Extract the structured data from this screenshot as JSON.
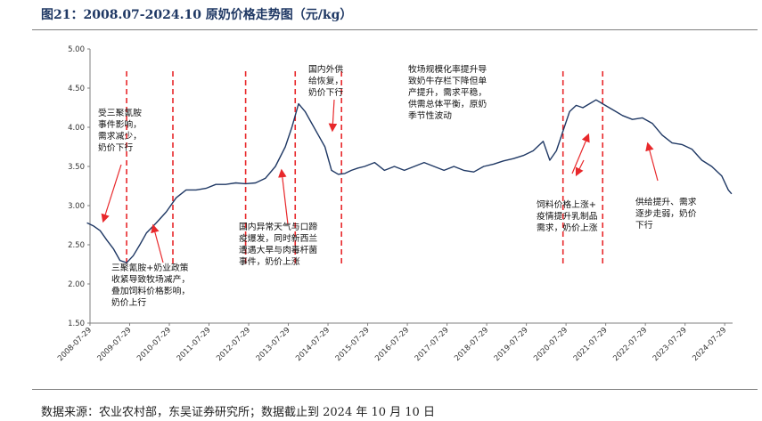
{
  "title": "图21：2008.07-2024.10 原奶价格走势图（元/kg）",
  "source": "数据来源：农业农村部，东吴证券研究所；数据截止到 2024 年 10 月 10 日",
  "colors": {
    "line": "#1f3864",
    "marker": "#e8282b",
    "axis": "#7f7f7f",
    "title": "#1f3864"
  },
  "chart_data": {
    "type": "line",
    "title": "",
    "xlabel": "",
    "ylabel": "",
    "ylim": [
      1.5,
      5.0
    ],
    "yticks": [
      "1.50",
      "2.00",
      "2.50",
      "3.00",
      "3.50",
      "4.00",
      "4.50",
      "5.00"
    ],
    "xticks": [
      "2008-07-29",
      "2009-07-29",
      "2010-07-29",
      "2011-07-29",
      "2012-07-29",
      "2013-07-29",
      "2014-07-29",
      "2015-07-29",
      "2016-07-29",
      "2017-07-29",
      "2018-07-29",
      "2019-07-29",
      "2020-07-29",
      "2021-07-29",
      "2022-07-29",
      "2023-07-29",
      "2024-07-29"
    ],
    "grid": false,
    "legend": "none",
    "series": [
      {
        "x": [
          "2008-07",
          "2008-09",
          "2008-11",
          "2009-01",
          "2009-03",
          "2009-05",
          "2009-07",
          "2009-09",
          "2009-11",
          "2010-01",
          "2010-04",
          "2010-07",
          "2010-10",
          "2011-01",
          "2011-04",
          "2011-07",
          "2011-10",
          "2012-01",
          "2012-04",
          "2012-07",
          "2012-10",
          "2013-01",
          "2013-04",
          "2013-07",
          "2013-09",
          "2013-11",
          "2014-01",
          "2014-03",
          "2014-05",
          "2014-07",
          "2014-09",
          "2014-11",
          "2015-01",
          "2015-03",
          "2015-05",
          "2015-07",
          "2015-10",
          "2016-01",
          "2016-04",
          "2016-07",
          "2016-10",
          "2017-01",
          "2017-04",
          "2017-07",
          "2017-10",
          "2018-01",
          "2018-04",
          "2018-07",
          "2018-10",
          "2019-01",
          "2019-04",
          "2019-07",
          "2019-10",
          "2020-01",
          "2020-03",
          "2020-05",
          "2020-07",
          "2020-09",
          "2020-11",
          "2021-01",
          "2021-03",
          "2021-05",
          "2021-07",
          "2021-09",
          "2021-11",
          "2022-01",
          "2022-04",
          "2022-07",
          "2022-10",
          "2023-01",
          "2023-04",
          "2023-07",
          "2023-10",
          "2024-01",
          "2024-04",
          "2024-07",
          "2024-09",
          "2024-10"
        ],
        "y": [
          2.78,
          2.74,
          2.68,
          2.56,
          2.45,
          2.3,
          2.27,
          2.36,
          2.5,
          2.65,
          2.78,
          2.92,
          3.1,
          3.2,
          3.2,
          3.22,
          3.27,
          3.27,
          3.29,
          3.28,
          3.29,
          3.35,
          3.5,
          3.75,
          4.0,
          4.3,
          4.2,
          4.05,
          3.9,
          3.75,
          3.45,
          3.4,
          3.41,
          3.45,
          3.48,
          3.5,
          3.55,
          3.45,
          3.5,
          3.45,
          3.5,
          3.55,
          3.5,
          3.45,
          3.5,
          3.45,
          3.43,
          3.5,
          3.53,
          3.57,
          3.6,
          3.64,
          3.7,
          3.82,
          3.58,
          3.7,
          3.95,
          4.2,
          4.28,
          4.25,
          4.3,
          4.35,
          4.3,
          4.25,
          4.2,
          4.15,
          4.1,
          4.12,
          4.05,
          3.9,
          3.8,
          3.78,
          3.72,
          3.58,
          3.5,
          3.38,
          3.2,
          3.15
        ]
      }
    ],
    "event_dates": [
      "2009-07",
      "2010-09",
      "2012-07",
      "2013-10",
      "2014-12",
      "2020-07",
      "2021-07"
    ],
    "annotations": [
      {
        "text": [
          "受三聚氰胺",
          "事件影响，",
          "需求减少，",
          "奶价下行"
        ]
      },
      {
        "text": [
          "三聚氰胺+奶业政策",
          "收紧导致牧场减产，",
          "叠加饲料价格影响，",
          "奶价上行"
        ]
      },
      {
        "text": [
          "国内异常天气与口蹄",
          "疫爆发，同时新西兰",
          "遭遇大旱与肉毒杆菌",
          "事件，奶价上涨"
        ]
      },
      {
        "text": [
          "国内外供",
          "给恢复，",
          "奶价下行"
        ]
      },
      {
        "text": [
          "牧场规模化率提升导",
          "致奶牛存栏下降但单",
          "产提升，需求平稳，",
          "供需总体平衡，原奶",
          "季节性波动"
        ]
      },
      {
        "text": [
          "饲料价格上涨+",
          "疫情提升乳制品",
          "需求，奶价上涨"
        ]
      },
      {
        "text": [
          "供给提升、需求",
          "逐步走弱，奶价",
          "下行"
        ]
      }
    ]
  }
}
